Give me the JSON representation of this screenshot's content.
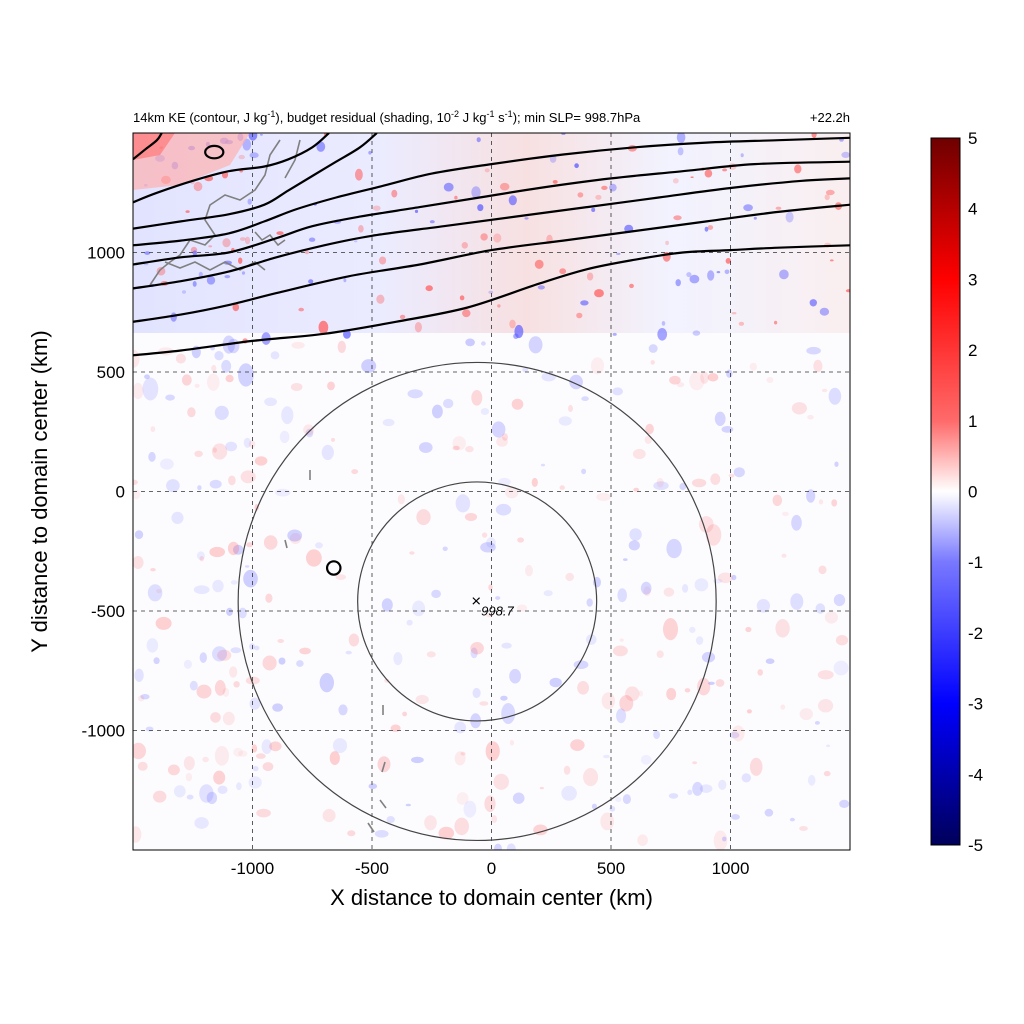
{
  "chart_data": {
    "type": "heatmap",
    "title_left_parts": {
      "a": "14km KE (contour, J kg",
      "b": "-1",
      "c": "), budget residual (shading, 10",
      "d": "-2",
      "e": " J kg",
      "f": "-1",
      "g": " s",
      "h": "-1",
      "i": "); min SLP= 998.7hPa"
    },
    "title_right": "+22.2h",
    "xlabel": "X distance to domain center (km)",
    "ylabel": "Y distance to domain center (km)",
    "xlim": [
      -1500,
      1500
    ],
    "ylim": [
      -1500,
      1500
    ],
    "xticks": [
      -1000,
      -500,
      0,
      500,
      1000
    ],
    "yticks": [
      -1000,
      -500,
      0,
      500,
      1000
    ],
    "xtick_labels": [
      "-1000",
      "-500",
      "0",
      "500",
      "1000"
    ],
    "ytick_labels": [
      "-1000",
      "-500",
      "0",
      "500",
      "1000"
    ],
    "grid": true,
    "colorbar": {
      "min": -5,
      "max": 5,
      "ticks": [
        "5",
        "4",
        "3",
        "2",
        "1",
        "0",
        "-1",
        "-2",
        "-3",
        "-4",
        "-5"
      ],
      "colormap": [
        "#00005a",
        "#0000ff",
        "#7878ff",
        "#ffffff",
        "#ff6a6a",
        "#ff0000",
        "#6e0000"
      ]
    },
    "storm_center": {
      "x": -60,
      "y": -460,
      "label": "998.7",
      "marker": "×"
    },
    "range_circles_km": [
      500,
      1000
    ],
    "ke_contours": [
      {
        "level": 1,
        "points": [
          [
            -1500,
            570
          ],
          [
            -1300,
            590
          ],
          [
            -1000,
            630
          ],
          [
            -700,
            660
          ],
          [
            -400,
            710
          ],
          [
            -100,
            770
          ],
          [
            200,
            870
          ],
          [
            400,
            930
          ],
          [
            600,
            970
          ],
          [
            800,
            1000
          ],
          [
            1000,
            1010
          ],
          [
            1200,
            1020
          ],
          [
            1500,
            1030
          ]
        ]
      },
      {
        "level": 2,
        "points": [
          [
            -1500,
            710
          ],
          [
            -1300,
            740
          ],
          [
            -1100,
            780
          ],
          [
            -900,
            830
          ],
          [
            -600,
            900
          ],
          [
            -300,
            950
          ],
          [
            0,
            1010
          ],
          [
            300,
            1050
          ],
          [
            600,
            1090
          ],
          [
            900,
            1130
          ],
          [
            1200,
            1170
          ],
          [
            1500,
            1200
          ]
        ]
      },
      {
        "level": 3,
        "points": [
          [
            -1500,
            850
          ],
          [
            -1300,
            880
          ],
          [
            -1100,
            920
          ],
          [
            -900,
            980
          ],
          [
            -700,
            1030
          ],
          [
            -500,
            1070
          ],
          [
            -200,
            1110
          ],
          [
            100,
            1150
          ],
          [
            400,
            1190
          ],
          [
            700,
            1230
          ],
          [
            1000,
            1270
          ],
          [
            1300,
            1300
          ],
          [
            1500,
            1310
          ]
        ]
      },
      {
        "level": 4,
        "points": [
          [
            -1500,
            950
          ],
          [
            -1300,
            980
          ],
          [
            -1100,
            1000
          ],
          [
            -900,
            1060
          ],
          [
            -750,
            1110
          ],
          [
            -550,
            1150
          ],
          [
            -300,
            1190
          ],
          [
            -50,
            1230
          ],
          [
            200,
            1270
          ],
          [
            500,
            1310
          ],
          [
            800,
            1340
          ],
          [
            1100,
            1370
          ],
          [
            1500,
            1380
          ]
        ]
      },
      {
        "level": 5,
        "points": [
          [
            -1500,
            1030
          ],
          [
            -1300,
            1050
          ],
          [
            -1100,
            1080
          ],
          [
            -950,
            1130
          ],
          [
            -820,
            1180
          ],
          [
            -650,
            1230
          ],
          [
            -450,
            1280
          ],
          [
            -250,
            1330
          ],
          [
            0,
            1370
          ],
          [
            300,
            1410
          ],
          [
            600,
            1440
          ],
          [
            900,
            1460
          ],
          [
            1200,
            1470
          ],
          [
            1500,
            1480
          ]
        ]
      },
      {
        "level": 6,
        "points": [
          [
            -1500,
            1100
          ],
          [
            -1300,
            1130
          ],
          [
            -1100,
            1160
          ],
          [
            -950,
            1200
          ],
          [
            -850,
            1260
          ],
          [
            -750,
            1320
          ],
          [
            -650,
            1380
          ],
          [
            -550,
            1440
          ],
          [
            -480,
            1500
          ]
        ]
      },
      {
        "level": 7,
        "points": [
          [
            -1500,
            1210
          ],
          [
            -1400,
            1250
          ],
          [
            -1250,
            1300
          ],
          [
            -1100,
            1340
          ],
          [
            -950,
            1360
          ],
          [
            -850,
            1390
          ],
          [
            -750,
            1440
          ],
          [
            -680,
            1500
          ]
        ]
      },
      {
        "level": 8,
        "points": [
          [
            -1500,
            1390
          ],
          [
            -1450,
            1430
          ],
          [
            -1400,
            1470
          ],
          [
            -1380,
            1500
          ]
        ]
      }
    ],
    "ke_small_contours": [
      {
        "center": [
          -660,
          -320
        ],
        "rx": 28,
        "ry": 28
      },
      {
        "center": [
          -1160,
          1420
        ],
        "rx": 38,
        "ry": 26
      }
    ]
  }
}
